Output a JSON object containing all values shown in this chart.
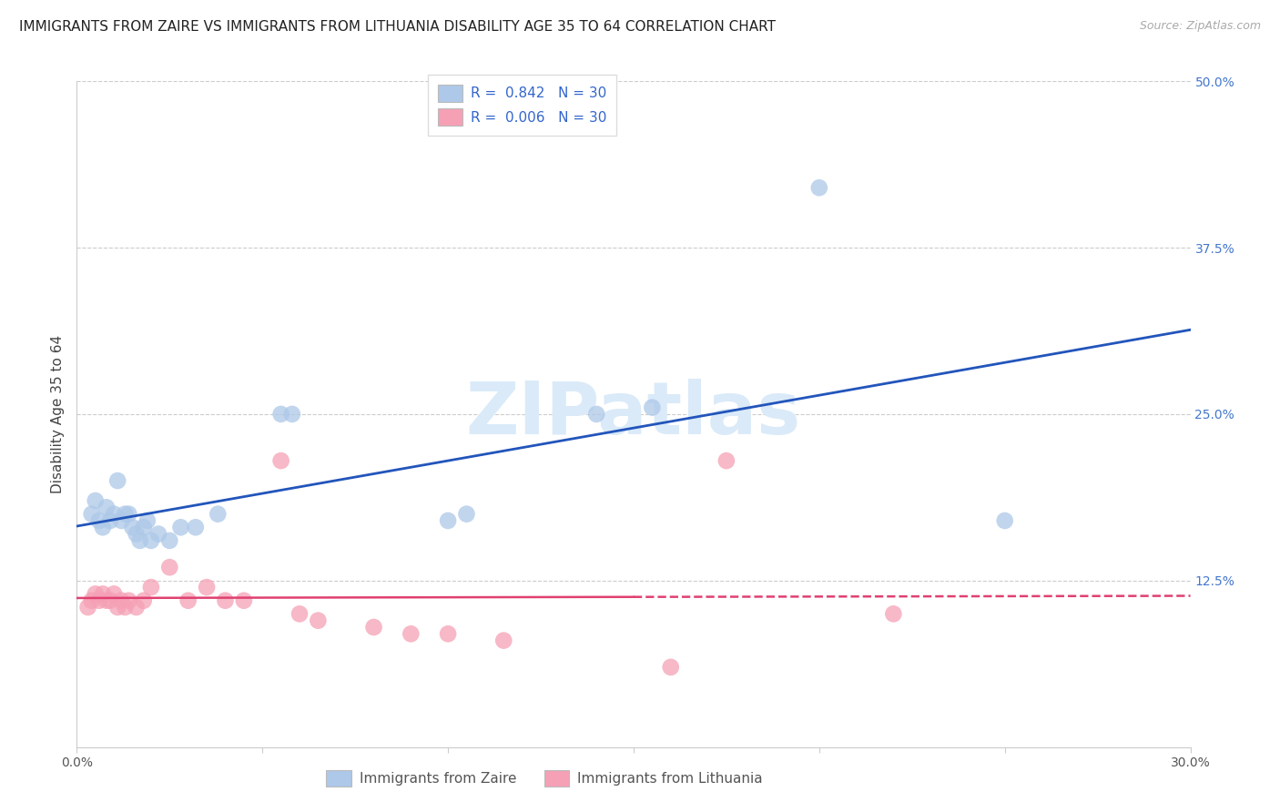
{
  "title": "IMMIGRANTS FROM ZAIRE VS IMMIGRANTS FROM LITHUANIA DISABILITY AGE 35 TO 64 CORRELATION CHART",
  "source": "Source: ZipAtlas.com",
  "ylabel": "Disability Age 35 to 64",
  "xmin": 0.0,
  "xmax": 0.3,
  "ymin": 0.0,
  "ymax": 0.5,
  "xticks": [
    0.0,
    0.05,
    0.1,
    0.15,
    0.2,
    0.25,
    0.3
  ],
  "yticks": [
    0.0,
    0.125,
    0.25,
    0.375,
    0.5
  ],
  "yticklabels": [
    "",
    "12.5%",
    "25.0%",
    "37.5%",
    "50.0%"
  ],
  "legend1_label": "R =  0.842   N = 30",
  "legend2_label": "R =  0.006   N = 30",
  "legend_label1": "Immigrants from Zaire",
  "legend_label2": "Immigrants from Lithuania",
  "zaire_color": "#adc8e8",
  "lithuania_color": "#f5a0b5",
  "zaire_line_color": "#2255bb",
  "lithuania_line_color": "#e04070",
  "watermark_color": "#daeaf8",
  "background_color": "#ffffff",
  "grid_color": "#cccccc",
  "zaire_x": [
    0.004,
    0.005,
    0.006,
    0.007,
    0.008,
    0.009,
    0.01,
    0.011,
    0.012,
    0.013,
    0.014,
    0.015,
    0.016,
    0.017,
    0.018,
    0.019,
    0.02,
    0.022,
    0.025,
    0.028,
    0.032,
    0.038,
    0.055,
    0.058,
    0.1,
    0.105,
    0.14,
    0.155,
    0.2,
    0.25
  ],
  "zaire_y": [
    0.175,
    0.185,
    0.17,
    0.165,
    0.18,
    0.17,
    0.175,
    0.2,
    0.17,
    0.175,
    0.175,
    0.165,
    0.16,
    0.155,
    0.165,
    0.17,
    0.155,
    0.16,
    0.155,
    0.165,
    0.165,
    0.175,
    0.25,
    0.25,
    0.17,
    0.175,
    0.25,
    0.255,
    0.42,
    0.17
  ],
  "lithuania_x": [
    0.003,
    0.004,
    0.005,
    0.006,
    0.007,
    0.008,
    0.009,
    0.01,
    0.011,
    0.012,
    0.013,
    0.014,
    0.016,
    0.018,
    0.02,
    0.025,
    0.03,
    0.035,
    0.04,
    0.045,
    0.055,
    0.06,
    0.065,
    0.08,
    0.09,
    0.1,
    0.115,
    0.16,
    0.175,
    0.22
  ],
  "lithuania_y": [
    0.105,
    0.11,
    0.115,
    0.11,
    0.115,
    0.11,
    0.11,
    0.115,
    0.105,
    0.11,
    0.105,
    0.11,
    0.105,
    0.11,
    0.12,
    0.135,
    0.11,
    0.12,
    0.11,
    0.11,
    0.215,
    0.1,
    0.095,
    0.09,
    0.085,
    0.085,
    0.08,
    0.06,
    0.215,
    0.1
  ],
  "title_fontsize": 11,
  "source_fontsize": 9,
  "axis_label_fontsize": 11,
  "tick_fontsize": 10,
  "legend_fontsize": 11
}
